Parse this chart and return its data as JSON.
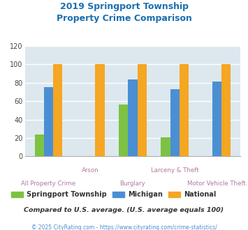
{
  "title_line1": "2019 Springport Township",
  "title_line2": "Property Crime Comparison",
  "title_color": "#1a6faf",
  "categories": [
    "All Property Crime",
    "Arson",
    "Burglary",
    "Larceny & Theft",
    "Motor Vehicle Theft"
  ],
  "springport": [
    24,
    0,
    56,
    21,
    0
  ],
  "michigan": [
    75,
    0,
    84,
    73,
    81
  ],
  "national": [
    100,
    100,
    100,
    100,
    100
  ],
  "springport_color": "#7dc242",
  "michigan_color": "#4a8fd4",
  "national_color": "#f5a623",
  "ylim": [
    0,
    120
  ],
  "yticks": [
    0,
    20,
    40,
    60,
    80,
    100,
    120
  ],
  "xlabel_color": "#b07aa0",
  "legend_label_springport": "Springport Township",
  "legend_label_michigan": "Michigan",
  "legend_label_national": "National",
  "footnote1": "Compared to U.S. average. (U.S. average equals 100)",
  "footnote2": "© 2025 CityRating.com - https://www.cityrating.com/crime-statistics/",
  "footnote1_color": "#333333",
  "footnote2_color": "#4a8fd4",
  "bg_color": "#dce8ee",
  "grid_color": "#ffffff",
  "bar_width": 0.22
}
